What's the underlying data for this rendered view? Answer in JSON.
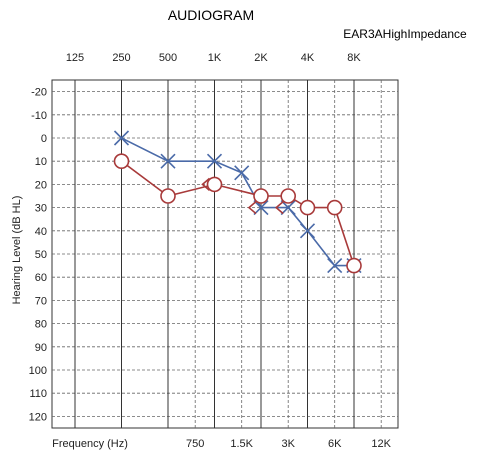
{
  "chart_data": {
    "type": "line",
    "title": "AUDIOGRAM",
    "subtitle": "EAR3AHighImpedance",
    "xlabel": "Frequency (Hz)",
    "ylabel": "Hearing Level (dB HL)",
    "x_top_ticks": [
      "125",
      "250",
      "500",
      "1K",
      "2K",
      "4K",
      "8K"
    ],
    "x_bottom_ticks": [
      "750",
      "1.5K",
      "3K",
      "6K",
      "12K"
    ],
    "y_ticks": [
      -20,
      -10,
      0,
      10,
      20,
      30,
      40,
      50,
      60,
      70,
      80,
      90,
      100,
      110,
      120
    ],
    "ylim": [
      -25,
      125
    ],
    "x_scale": "log2",
    "grid": true,
    "series": [
      {
        "marker": "X",
        "color": "#4a6aa8",
        "points": [
          {
            "freq": "250",
            "db": 0
          },
          {
            "freq": "500",
            "db": 10
          },
          {
            "freq": "1K",
            "db": 10
          },
          {
            "freq": "1.5K",
            "db": 15
          },
          {
            "freq": "2K",
            "db": 30
          },
          {
            "freq": "3K",
            "db": 30
          },
          {
            "freq": "4K",
            "db": 40
          },
          {
            "freq": "6K",
            "db": 55
          },
          {
            "freq": "8K",
            "db": 55
          }
        ]
      },
      {
        "marker": "O",
        "color": "#a83a3a",
        "points": [
          {
            "freq": "250",
            "db": 10
          },
          {
            "freq": "500",
            "db": 25
          },
          {
            "freq": "1K",
            "db": 20
          },
          {
            "freq": "2K",
            "db": 25
          },
          {
            "freq": "3K",
            "db": 25
          },
          {
            "freq": "4K",
            "db": 30
          },
          {
            "freq": "6K",
            "db": 30
          },
          {
            "freq": "8K",
            "db": 55
          }
        ]
      }
    ],
    "bone_conduction": [
      {
        "marker": "<",
        "color": "#a83a3a",
        "freq": "1K",
        "db": 20
      },
      {
        "marker": "<",
        "color": "#a83a3a",
        "freq": "2K",
        "db": 30
      },
      {
        "marker": "<",
        "color": "#a83a3a",
        "freq": "3K",
        "db": 30
      }
    ]
  }
}
